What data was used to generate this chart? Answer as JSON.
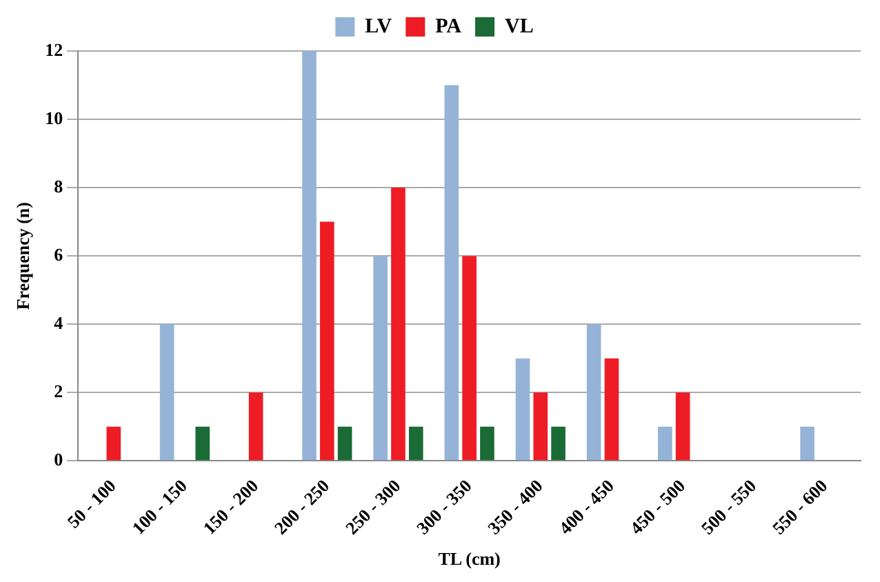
{
  "chart_data": {
    "type": "bar",
    "xlabel": "TL (cm)",
    "ylabel": "Frequency (n)",
    "categories": [
      "50 - 100",
      "100 - 150",
      "150 - 200",
      "200 - 250",
      "250 - 300",
      "300 - 350",
      "350 - 400",
      "400 - 450",
      "450 - 500",
      "500 - 550",
      "550 - 600"
    ],
    "series": [
      {
        "name": "LV",
        "color": "#95b3d7",
        "values": [
          0,
          4,
          0,
          12,
          6,
          11,
          3,
          4,
          1,
          0,
          1
        ]
      },
      {
        "name": "PA",
        "color": "#ee1c25",
        "values": [
          1,
          0,
          2,
          7,
          8,
          6,
          2,
          3,
          2,
          0,
          0
        ]
      },
      {
        "name": "VL",
        "color": "#1a6b35",
        "values": [
          0,
          1,
          0,
          1,
          1,
          1,
          1,
          0,
          0,
          0,
          0
        ]
      }
    ],
    "ylim": [
      0,
      12
    ],
    "yticks": [
      0,
      2,
      4,
      6,
      8,
      10,
      12
    ],
    "grid": "y",
    "legend": "top"
  }
}
